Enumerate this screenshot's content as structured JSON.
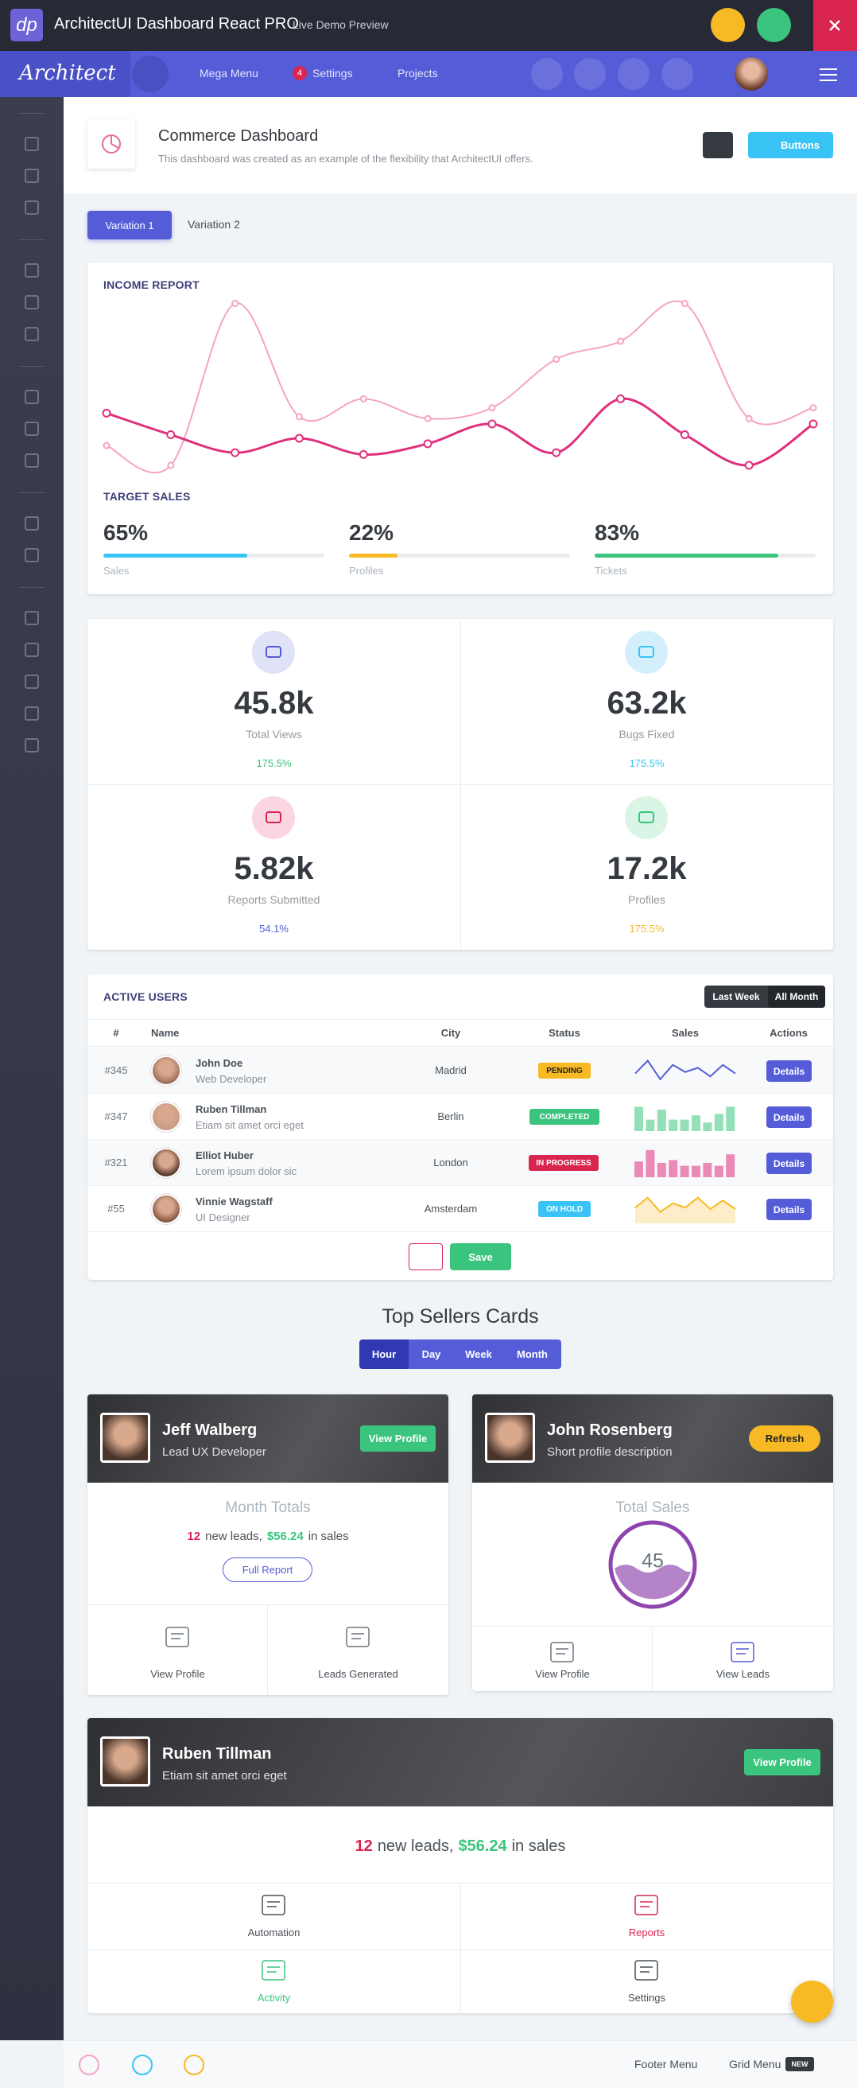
{
  "topbar": {
    "logo": "dp",
    "title": "ArchitectUI Dashboard React PRO",
    "subtitle": "Live Demo Preview"
  },
  "nav": {
    "brand": "Architect",
    "items": [
      "Mega Menu",
      "Settings",
      "Projects"
    ],
    "settings_badge": "4"
  },
  "header": {
    "title": "Commerce Dashboard",
    "description": "This dashboard was created as an example of the flexibility that ArchitectUI offers.",
    "buttons_label": "Buttons"
  },
  "tabs": [
    "Variation 1",
    "Variation 2"
  ],
  "income": {
    "title": "INCOME REPORT",
    "chart": {
      "type": "line",
      "ylim": [
        0,
        100
      ],
      "series": [
        {
          "color": "#f5a3c3",
          "values": [
            15,
            4,
            94,
            31,
            41,
            30,
            36,
            63,
            73,
            94,
            30,
            36
          ]
        },
        {
          "color": "#e0307d",
          "values": [
            33,
            21,
            11,
            19,
            10,
            16,
            27,
            11,
            41,
            21,
            4,
            27
          ]
        }
      ]
    },
    "target_title": "TARGET SALES",
    "targets": [
      {
        "label": "Sales",
        "value": 65,
        "value_label": "65%",
        "color": "#3ac4f5"
      },
      {
        "label": "Profiles",
        "value": 22,
        "value_label": "22%",
        "color": "#f7b924"
      },
      {
        "label": "Tickets",
        "value": 83,
        "value_label": "83%",
        "color": "#3ac47d"
      }
    ]
  },
  "stats": [
    {
      "value": "45.8k",
      "label": "Total Views",
      "change": "175.5%"
    },
    {
      "value": "63.2k",
      "label": "Bugs Fixed",
      "change": "175.5%"
    },
    {
      "value": "5.82k",
      "label": "Reports Submitted",
      "change": "54.1%"
    },
    {
      "value": "17.2k",
      "label": "Profiles",
      "change": "175.5%"
    }
  ],
  "active_users": {
    "title": "ACTIVE USERS",
    "filters": [
      "Last Week",
      "All Month"
    ],
    "columns": [
      "#",
      "Name",
      "City",
      "Status",
      "Sales",
      "Actions"
    ],
    "rows": [
      {
        "id": "#345",
        "name": "John Doe",
        "role": "Web Developer",
        "city": "Madrid",
        "status": "PENDING",
        "action": "Details",
        "sales": {
          "type": "line",
          "color": "#545cd8",
          "ylim": [
            0,
            100
          ],
          "values": [
            40,
            85,
            20,
            70,
            45,
            60,
            30,
            70,
            40
          ]
        }
      },
      {
        "id": "#347",
        "name": "Ruben Tillman",
        "role": "Etiam sit amet orci eget",
        "city": "Berlin",
        "status": "COMPLETED",
        "action": "Details",
        "sales": {
          "type": "bar",
          "color": "#3ac47d",
          "ylim": [
            0,
            100
          ],
          "values": [
            85,
            40,
            75,
            40,
            40,
            55,
            30,
            60,
            85
          ]
        }
      },
      {
        "id": "#321",
        "name": "Elliot Huber",
        "role": "Lorem ipsum dolor sic",
        "city": "London",
        "status": "IN PROGRESS",
        "action": "Details",
        "sales": {
          "type": "bar",
          "color": "#e0307d",
          "ylim": [
            0,
            100
          ],
          "values": [
            55,
            95,
            50,
            60,
            40,
            40,
            50,
            40,
            80
          ]
        }
      },
      {
        "id": "#55",
        "name": "Vinnie Wagstaff",
        "role": "UI Designer",
        "city": "Amsterdam",
        "status": "ON HOLD",
        "action": "Details",
        "sales": {
          "type": "area",
          "color": "#f7b924",
          "ylim": [
            0,
            100
          ],
          "values": [
            55,
            90,
            40,
            70,
            55,
            90,
            50,
            80,
            50
          ]
        }
      }
    ],
    "save": "Save"
  },
  "top_sellers": {
    "title": "Top Sellers Cards",
    "periods": [
      "Hour",
      "Day",
      "Week",
      "Month"
    ]
  },
  "seller_cards": [
    {
      "name": "Jeff Walberg",
      "role": "Lead UX Developer",
      "button": "View Profile",
      "section": "Month Totals",
      "leads": {
        "count": "12",
        "text1": "new leads,",
        "amount": "$56.24",
        "text2": "in sales"
      },
      "report": "Full Report",
      "links": [
        "View Profile",
        "Leads Generated"
      ]
    },
    {
      "name": "John Rosenberg",
      "role": "Short profile description",
      "button": "Refresh",
      "section": "Total Sales",
      "total": 45,
      "links": [
        "View Profile",
        "View Leads"
      ]
    }
  ],
  "wide_card": {
    "name": "Ruben Tillman",
    "role": "Etiam sit amet orci eget",
    "button": "View Profile",
    "leads": {
      "count": "12",
      "text1": "new leads,",
      "amount": "$56.24",
      "text2": "in sales"
    },
    "links": [
      "Automation",
      "Reports",
      "Activity",
      "Settings"
    ]
  },
  "footer": {
    "items": [
      "Footer Menu",
      "Grid Menu"
    ],
    "badge": "NEW"
  }
}
